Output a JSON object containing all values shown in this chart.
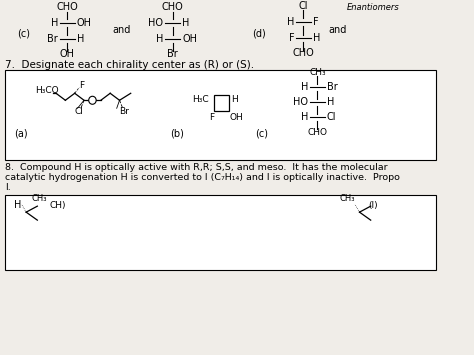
{
  "bg_color": "#f0ede8",
  "line_color": "#000000",
  "text_color": "#000000",
  "section7_title": "7.  Designate each chirality center as (R) or (S).",
  "section8_text1": "8.  Compound H is optically active with R,R; S,S, and meso.  It has the molecular",
  "section8_text2": "catalytic hydrogenation H is converted to I (C₇H₁₄) and I is optically inactive.  Propo",
  "section8_text3": "I."
}
